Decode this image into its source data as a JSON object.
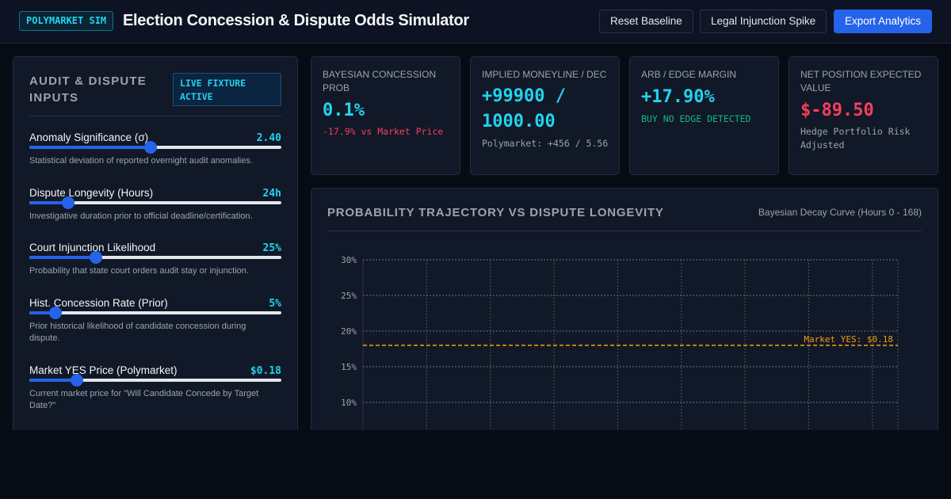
{
  "header": {
    "brand": "POLYMARKET SIM",
    "title": "Election Concession & Dispute Odds Simulator",
    "buttons": {
      "reset": "Reset Baseline",
      "legal": "Legal Injunction Spike",
      "export": "Export Analytics"
    }
  },
  "inputs": {
    "title": "AUDIT & DISPUTE INPUTS",
    "badge": "LIVE FIXTURE ACTIVE",
    "controls": [
      {
        "label": "Anomaly Significance (σ)",
        "value": "2.40",
        "level": 0.48,
        "desc": "Statistical deviation of reported overnight audit anomalies."
      },
      {
        "label": "Dispute Longevity (Hours)",
        "value": "24h",
        "level": 0.155,
        "desc": "Investigative duration prior to official deadline/certification."
      },
      {
        "label": "Court Injunction Likelihood",
        "value": "25%",
        "level": 0.265,
        "desc": "Probability that state court orders audit stay or injunction."
      },
      {
        "label": "Hist. Concession Rate (Prior)",
        "value": "5%",
        "level": 0.105,
        "desc": "Prior historical likelihood of candidate concession during dispute."
      },
      {
        "label": "Market YES Price (Polymarket)",
        "value": "$0.18",
        "level": 0.19,
        "desc": "Current market price for \"Will Candidate Concede by Target Date?\""
      }
    ]
  },
  "cards": [
    {
      "title": "BAYESIAN CONCESSION PROB",
      "value": "0.1%",
      "sub": "-17.9% vs Market Price",
      "value_color": "#22d3ee",
      "sub_color": "#f43f5e"
    },
    {
      "title": "IMPLIED MONEYLINE / DEC",
      "value": "+99900 / 1000.00",
      "sub": "Polymarket: +456 / 5.56",
      "value_color": "#22d3ee",
      "sub_color": "#9ca3af"
    },
    {
      "title": "ARB / EDGE MARGIN",
      "value": "+17.90%",
      "sub": "BUY NO EDGE DETECTED",
      "value_color": "#22d3ee",
      "sub_color": "#10b981"
    },
    {
      "title": "NET POSITION EXPECTED VALUE",
      "value": "$-89.50",
      "sub": "Hedge Portfolio Risk Adjusted",
      "value_color": "#f43f5e",
      "sub_color": "#9ca3af"
    }
  ],
  "chart": {
    "title": "PROBABILITY TRAJECTORY VS DISPUTE LONGEVITY",
    "subtitle": "Bayesian Decay Curve (Hours 0 - 168)"
  },
  "chart_data": {
    "type": "line",
    "title": "PROBABILITY TRAJECTORY VS DISPUTE LONGEVITY",
    "subtitle": "Bayesian Decay Curve (Hours 0 - 168)",
    "y_ticks": [
      "30%",
      "25%",
      "20%",
      "15%",
      "10%"
    ],
    "y_tick_values": [
      30,
      25,
      20,
      15,
      10
    ],
    "ylim": [
      0,
      30
    ],
    "xlim": [
      0,
      168
    ],
    "grid": true,
    "reference_line": {
      "label": "Market YES: $0.18",
      "value": 18,
      "color": "#f59e0b"
    },
    "series": []
  }
}
